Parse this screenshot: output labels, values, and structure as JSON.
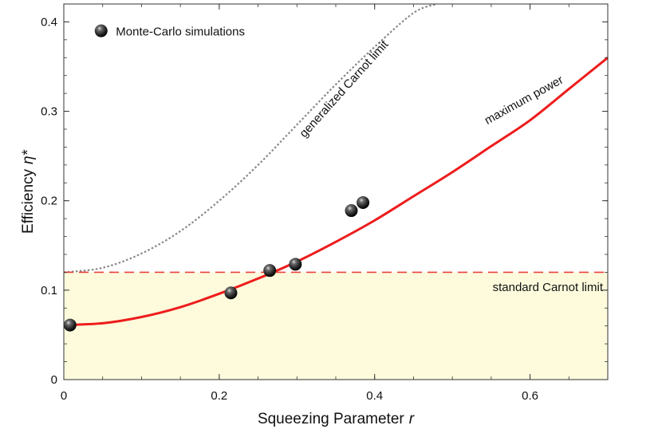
{
  "chart_data": {
    "type": "line",
    "xlabel": "Squeezing Parameter",
    "xlabel_var": "r",
    "ylabel": "Efficiency",
    "ylabel_var": "η*",
    "xlim": [
      0,
      0.7
    ],
    "ylim": [
      0,
      0.42
    ],
    "x_ticks": [
      0,
      0.2,
      0.4,
      0.6
    ],
    "x_tick_labels": [
      "0",
      "0.2",
      "0.4",
      "0.6"
    ],
    "y_ticks": [
      0,
      0.1,
      0.2,
      0.3,
      0.4
    ],
    "y_tick_labels": [
      "0",
      "0.1",
      "0.2",
      "0.3",
      "0.4"
    ],
    "grid": false,
    "legend": {
      "placement": "top-left",
      "label": "Monte-Carlo simulations"
    },
    "shaded_region": {
      "y_from": 0,
      "y_to": 0.12,
      "color": "#fdfbdc"
    },
    "colors": {
      "max_power": "#ee1c1c",
      "std_carnot": "#e8413b",
      "gen_carnot": "#888888",
      "points": "#333333"
    },
    "series": [
      {
        "label": "maximum power",
        "style": "solid",
        "x": [
          0,
          0.05,
          0.1,
          0.15,
          0.2,
          0.25,
          0.3,
          0.35,
          0.4,
          0.45,
          0.5,
          0.55,
          0.6,
          0.65,
          0.7
        ],
        "y": [
          0.061,
          0.063,
          0.07,
          0.081,
          0.096,
          0.113,
          0.132,
          0.154,
          0.178,
          0.205,
          0.232,
          0.261,
          0.29,
          0.325,
          0.36
        ]
      },
      {
        "label": "generalized Carnot limit",
        "style": "dotted",
        "x": [
          0,
          0.05,
          0.1,
          0.15,
          0.2,
          0.25,
          0.3,
          0.35,
          0.4,
          0.45,
          0.48
        ],
        "y": [
          0.12,
          0.125,
          0.141,
          0.166,
          0.2,
          0.24,
          0.285,
          0.33,
          0.372,
          0.41,
          0.42
        ]
      },
      {
        "label": "standard Carnot limit",
        "style": "dashed",
        "x": [
          0,
          0.7
        ],
        "y": [
          0.12,
          0.12
        ]
      }
    ],
    "points": {
      "label": "Monte-Carlo simulations",
      "x": [
        0.008,
        0.215,
        0.265,
        0.298,
        0.37,
        0.385
      ],
      "y": [
        0.061,
        0.097,
        0.122,
        0.129,
        0.189,
        0.198
      ]
    }
  }
}
